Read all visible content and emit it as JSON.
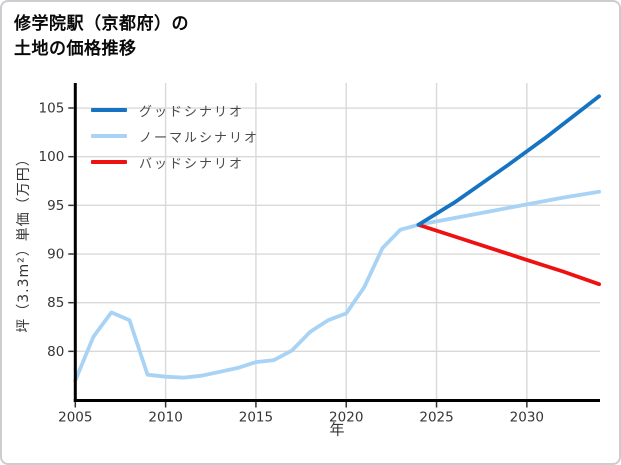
{
  "title": {
    "line1": "修学院駅（京都府）の",
    "line2": "土地の価格推移"
  },
  "chart_data": {
    "type": "line",
    "title": "修学院駅（京都府）の土地の価格推移",
    "xlabel": "年",
    "ylabel": "坪（3.3m²）単価（万円）",
    "xlim": [
      2005,
      2034.05
    ],
    "ylim": [
      74.95,
      107.57
    ],
    "xticks": [
      2005,
      2010,
      2015,
      2020,
      2025,
      2030
    ],
    "yticks": [
      80,
      85,
      90,
      95,
      100,
      105
    ],
    "grid": true,
    "legend_position": "upper-left",
    "colors": {
      "grid": "#d9d9d9",
      "spine": "#000000",
      "tick_label": "#363636"
    },
    "series": [
      {
        "name": "グッドシナリオ",
        "color": "#1673c1",
        "x": [
          2024,
          2026,
          2029,
          2031,
          2034
        ],
        "y": [
          93.0,
          95.3,
          99.2,
          101.9,
          106.2
        ]
      },
      {
        "name": "ノーマルシナリオ",
        "color": "#a8d3f5",
        "x": [
          2005,
          2006,
          2007,
          2008,
          2009,
          2010,
          2011,
          2012,
          2013,
          2014,
          2015,
          2016,
          2017,
          2018,
          2019,
          2020,
          2021,
          2022,
          2023,
          2024,
          2026,
          2028,
          2030,
          2032,
          2034
        ],
        "y": [
          77.0,
          81.5,
          84.0,
          83.2,
          77.6,
          77.4,
          77.3,
          77.5,
          77.9,
          78.3,
          78.9,
          79.1,
          80.1,
          82.0,
          83.2,
          83.9,
          86.6,
          90.6,
          92.5,
          93.0,
          93.7,
          94.4,
          95.1,
          95.8,
          96.4
        ]
      },
      {
        "name": "バッドシナリオ",
        "color": "#ee1111",
        "x": [
          2024,
          2026,
          2028,
          2030,
          2032,
          2034
        ],
        "y": [
          93.0,
          91.8,
          90.6,
          89.4,
          88.2,
          86.9
        ]
      }
    ],
    "draw_order": [
      1,
      2,
      0
    ]
  }
}
